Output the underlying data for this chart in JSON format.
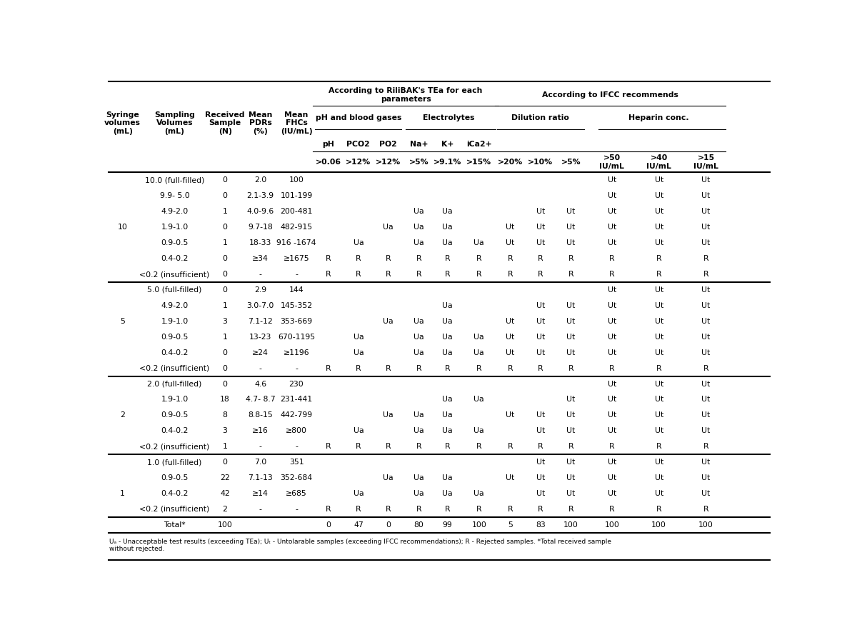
{
  "rows": [
    [
      "",
      "10.0 (full-filled)",
      "0",
      "2.0",
      "100",
      "",
      "",
      "",
      "",
      "",
      "",
      "",
      "",
      "",
      "Ut",
      "Ut",
      "Ut"
    ],
    [
      "",
      "9.9- 5.0",
      "0",
      "2.1-3.9",
      "101-199",
      "",
      "",
      "",
      "",
      "",
      "",
      "",
      "",
      "",
      "Ut",
      "Ut",
      "Ut"
    ],
    [
      "",
      "4.9-2.0",
      "1",
      "4.0-9.6",
      "200-481",
      "",
      "",
      "",
      "Ua",
      "Ua",
      "",
      "",
      "Ut",
      "Ut",
      "Ut",
      "Ut",
      "Ut"
    ],
    [
      "10",
      "1.9-1.0",
      "0",
      "9.7-18",
      "482-915",
      "",
      "",
      "Ua",
      "Ua",
      "Ua",
      "",
      "Ut",
      "Ut",
      "Ut",
      "Ut",
      "Ut",
      "Ut"
    ],
    [
      "",
      "0.9-0.5",
      "1",
      "18-33",
      "916 -1674",
      "",
      "Ua",
      "",
      "Ua",
      "Ua",
      "Ua",
      "Ut",
      "Ut",
      "Ut",
      "Ut",
      "Ut",
      "Ut"
    ],
    [
      "",
      "0.4-0.2",
      "0",
      "≥34",
      "≥1675",
      "R",
      "R",
      "R",
      "R",
      "R",
      "R",
      "R",
      "R",
      "R",
      "R",
      "R",
      "R"
    ],
    [
      "",
      "<0.2 (insufficient)",
      "0",
      "-",
      "-",
      "R",
      "R",
      "R",
      "R",
      "R",
      "R",
      "R",
      "R",
      "R",
      "R",
      "R",
      "R"
    ],
    [
      "",
      "5.0 (full-filled)",
      "0",
      "2.9",
      "144",
      "",
      "",
      "",
      "",
      "",
      "",
      "",
      "",
      "",
      "Ut",
      "Ut",
      "Ut"
    ],
    [
      "",
      "4.9-2.0",
      "1",
      "3.0-7.0",
      "145-352",
      "",
      "",
      "",
      "",
      "Ua",
      "",
      "",
      "Ut",
      "Ut",
      "Ut",
      "Ut",
      "Ut"
    ],
    [
      "5",
      "1.9-1.0",
      "3",
      "7.1-12",
      "353-669",
      "",
      "",
      "Ua",
      "Ua",
      "Ua",
      "",
      "Ut",
      "Ut",
      "Ut",
      "Ut",
      "Ut",
      "Ut"
    ],
    [
      "",
      "0.9-0.5",
      "1",
      "13-23",
      "670-1195",
      "",
      "Ua",
      "",
      "Ua",
      "Ua",
      "Ua",
      "Ut",
      "Ut",
      "Ut",
      "Ut",
      "Ut",
      "Ut"
    ],
    [
      "",
      "0.4-0.2",
      "0",
      "≥24",
      "≥1196",
      "",
      "Ua",
      "",
      "Ua",
      "Ua",
      "Ua",
      "Ut",
      "Ut",
      "Ut",
      "Ut",
      "Ut",
      "Ut"
    ],
    [
      "",
      "<0.2 (insufficient)",
      "0",
      "-",
      "-",
      "R",
      "R",
      "R",
      "R",
      "R",
      "R",
      "R",
      "R",
      "R",
      "R",
      "R",
      "R"
    ],
    [
      "",
      "2.0 (full-filled)",
      "0",
      "4.6",
      "230",
      "",
      "",
      "",
      "",
      "",
      "",
      "",
      "",
      "",
      "Ut",
      "Ut",
      "Ut"
    ],
    [
      "",
      "1.9-1.0",
      "18",
      "4.7- 8.7",
      "231-441",
      "",
      "",
      "",
      "",
      "Ua",
      "Ua",
      "",
      "",
      "Ut",
      "Ut",
      "Ut",
      "Ut"
    ],
    [
      "2",
      "0.9-0.5",
      "8",
      "8.8-15",
      "442-799",
      "",
      "",
      "Ua",
      "Ua",
      "Ua",
      "",
      "Ut",
      "Ut",
      "Ut",
      "Ut",
      "Ut",
      "Ut"
    ],
    [
      "",
      "0.4-0.2",
      "3",
      "≥16",
      "≥800",
      "",
      "Ua",
      "",
      "Ua",
      "Ua",
      "Ua",
      "",
      "Ut",
      "Ut",
      "Ut",
      "Ut",
      "Ut"
    ],
    [
      "",
      "<0.2 (insufficient)",
      "1",
      "-",
      "-",
      "R",
      "R",
      "R",
      "R",
      "R",
      "R",
      "R",
      "R",
      "R",
      "R",
      "R",
      "R"
    ],
    [
      "",
      "1.0 (full-filled)",
      "0",
      "7.0",
      "351",
      "",
      "",
      "",
      "",
      "",
      "",
      "",
      "Ut",
      "Ut",
      "Ut",
      "Ut",
      "Ut"
    ],
    [
      "",
      "0.9-0.5",
      "22",
      "7.1-13",
      "352-684",
      "",
      "",
      "Ua",
      "Ua",
      "Ua",
      "",
      "Ut",
      "Ut",
      "Ut",
      "Ut",
      "Ut",
      "Ut"
    ],
    [
      "1",
      "0.4-0.2",
      "42",
      "≥14",
      "≥685",
      "",
      "Ua",
      "",
      "Ua",
      "Ua",
      "Ua",
      "",
      "Ut",
      "Ut",
      "Ut",
      "Ut",
      "Ut"
    ],
    [
      "",
      "<0.2 (insufficient)",
      "2",
      "-",
      "-",
      "R",
      "R",
      "R",
      "R",
      "R",
      "R",
      "R",
      "R",
      "R",
      "R",
      "R",
      "R"
    ],
    [
      "",
      "Total*",
      "100",
      "",
      "",
      "0",
      "47",
      "0",
      "80",
      "99",
      "100",
      "5",
      "83",
      "100",
      "100",
      "100",
      "100"
    ]
  ],
  "group_separators": [
    6,
    12,
    17,
    21
  ],
  "footnote": "Uₐ - Unacceptable test results (exceeding TEa); Uₔ - Untolarable samples (exceeding IFCC recommendations); R - Rejected samples. *Total received sample\nwithout rejected."
}
